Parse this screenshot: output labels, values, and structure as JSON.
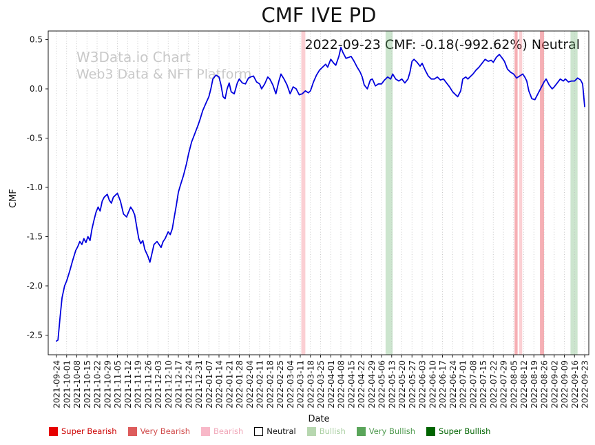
{
  "title": "CMF IVE PD",
  "annotation": "2022-09-23 CMF: -0.18(-992.62%) Neutral",
  "watermark": {
    "line1": "W3Data.io Chart",
    "line2": "Web3 Data & NFT Platform"
  },
  "chart_data": {
    "type": "line",
    "title": "CMF IVE PD",
    "xlabel": "Date",
    "ylabel": "CMF",
    "ylim": [
      -2.7,
      0.59
    ],
    "yticks": [
      0.5,
      0.0,
      -0.5,
      -1.0,
      -1.5,
      -2.0,
      -2.5
    ],
    "grid": "vertical-dotted",
    "legend_position": "bottom",
    "line_color": "#0000dd",
    "x_tick_labels": [
      "2021-09-24",
      "2021-10-01",
      "2021-10-08",
      "2021-10-15",
      "2021-10-22",
      "2021-10-29",
      "2021-11-05",
      "2021-11-12",
      "2021-11-19",
      "2021-11-26",
      "2021-12-03",
      "2021-12-10",
      "2021-12-17",
      "2021-12-24",
      "2021-12-31",
      "2022-01-07",
      "2022-01-14",
      "2022-01-21",
      "2022-01-28",
      "2022-02-04",
      "2022-02-11",
      "2022-02-18",
      "2022-02-25",
      "2022-03-04",
      "2022-03-11",
      "2022-03-18",
      "2022-03-25",
      "2022-04-01",
      "2022-04-08",
      "2022-04-15",
      "2022-04-22",
      "2022-04-29",
      "2022-05-06",
      "2022-05-13",
      "2022-05-20",
      "2022-05-27",
      "2022-06-03",
      "2022-06-10",
      "2022-06-17",
      "2022-06-24",
      "2022-07-01",
      "2022-07-08",
      "2022-07-15",
      "2022-07-22",
      "2022-07-29",
      "2022-08-05",
      "2022-08-12",
      "2022-08-19",
      "2022-08-26",
      "2022-09-02",
      "2022-09-09",
      "2022-09-16",
      "2022-09-23"
    ],
    "band_colors": {
      "bearish": "rgba(244,130,140,0.38)",
      "very_bearish": "rgba(238,95,105,0.5)",
      "bullish": "rgba(110,180,115,0.35)"
    },
    "bands": [
      {
        "from": 24.1,
        "to": 24.5,
        "type": "bearish",
        "near_date": "2022-03-18"
      },
      {
        "from": 32.4,
        "to": 33.1,
        "type": "bullish",
        "near_date": "2022-05-13"
      },
      {
        "from": 45.1,
        "to": 45.4,
        "type": "very_bearish",
        "near_date": "2022-08-05"
      },
      {
        "from": 45.55,
        "to": 45.85,
        "type": "bearish",
        "near_date": "2022-08-12"
      },
      {
        "from": 47.6,
        "to": 48.0,
        "type": "very_bearish",
        "near_date": "2022-08-26"
      },
      {
        "from": 50.6,
        "to": 51.3,
        "type": "bullish",
        "near_date": "2022-09-16"
      }
    ],
    "series": [
      {
        "name": "CMF",
        "color": "#0000dd",
        "x_unit": "week_index_of_x_tick_labels",
        "points": [
          [
            0,
            -2.56
          ],
          [
            0.15,
            -2.55
          ],
          [
            0.35,
            -2.32
          ],
          [
            0.55,
            -2.12
          ],
          [
            0.8,
            -2.0
          ],
          [
            1,
            -1.95
          ],
          [
            1.3,
            -1.85
          ],
          [
            1.6,
            -1.74
          ],
          [
            1.9,
            -1.64
          ],
          [
            2.1,
            -1.6
          ],
          [
            2.3,
            -1.55
          ],
          [
            2.5,
            -1.58
          ],
          [
            2.7,
            -1.52
          ],
          [
            2.9,
            -1.56
          ],
          [
            3.1,
            -1.5
          ],
          [
            3.3,
            -1.54
          ],
          [
            3.5,
            -1.42
          ],
          [
            3.7,
            -1.33
          ],
          [
            3.9,
            -1.25
          ],
          [
            4.1,
            -1.2
          ],
          [
            4.3,
            -1.24
          ],
          [
            4.5,
            -1.14
          ],
          [
            4.7,
            -1.1
          ],
          [
            5,
            -1.07
          ],
          [
            5.2,
            -1.13
          ],
          [
            5.4,
            -1.16
          ],
          [
            5.6,
            -1.1
          ],
          [
            5.8,
            -1.08
          ],
          [
            6,
            -1.06
          ],
          [
            6.3,
            -1.14
          ],
          [
            6.6,
            -1.27
          ],
          [
            6.9,
            -1.3
          ],
          [
            7.1,
            -1.25
          ],
          [
            7.3,
            -1.2
          ],
          [
            7.5,
            -1.23
          ],
          [
            7.7,
            -1.28
          ],
          [
            7.9,
            -1.4
          ],
          [
            8.1,
            -1.52
          ],
          [
            8.3,
            -1.57
          ],
          [
            8.5,
            -1.54
          ],
          [
            8.7,
            -1.63
          ],
          [
            9,
            -1.7
          ],
          [
            9.2,
            -1.76
          ],
          [
            9.4,
            -1.67
          ],
          [
            9.6,
            -1.58
          ],
          [
            9.9,
            -1.55
          ],
          [
            10.1,
            -1.58
          ],
          [
            10.3,
            -1.61
          ],
          [
            10.5,
            -1.55
          ],
          [
            10.7,
            -1.52
          ],
          [
            11,
            -1.45
          ],
          [
            11.2,
            -1.48
          ],
          [
            11.4,
            -1.42
          ],
          [
            11.6,
            -1.3
          ],
          [
            11.8,
            -1.18
          ],
          [
            12,
            -1.05
          ],
          [
            12.2,
            -0.98
          ],
          [
            12.5,
            -0.88
          ],
          [
            12.8,
            -0.76
          ],
          [
            13,
            -0.66
          ],
          [
            13.3,
            -0.54
          ],
          [
            13.6,
            -0.46
          ],
          [
            13.9,
            -0.38
          ],
          [
            14.1,
            -0.32
          ],
          [
            14.4,
            -0.22
          ],
          [
            14.7,
            -0.15
          ],
          [
            15,
            -0.08
          ],
          [
            15.2,
            0
          ],
          [
            15.4,
            0.1
          ],
          [
            15.7,
            0.14
          ],
          [
            16,
            0.12
          ],
          [
            16.2,
            0.04
          ],
          [
            16.4,
            -0.08
          ],
          [
            16.6,
            -0.1
          ],
          [
            16.8,
            0
          ],
          [
            17,
            0.06
          ],
          [
            17.2,
            -0.03
          ],
          [
            17.5,
            -0.05
          ],
          [
            17.8,
            0.06
          ],
          [
            18,
            0.1
          ],
          [
            18.3,
            0.06
          ],
          [
            18.6,
            0.05
          ],
          [
            18.9,
            0.11
          ],
          [
            19.1,
            0.12
          ],
          [
            19.4,
            0.13
          ],
          [
            19.7,
            0.07
          ],
          [
            20,
            0.05
          ],
          [
            20.2,
            0
          ],
          [
            20.5,
            0.05
          ],
          [
            20.8,
            0.12
          ],
          [
            21,
            0.1
          ],
          [
            21.3,
            0.04
          ],
          [
            21.6,
            -0.05
          ],
          [
            21.9,
            0.08
          ],
          [
            22.1,
            0.15
          ],
          [
            22.4,
            0.1
          ],
          [
            22.7,
            0.04
          ],
          [
            23,
            -0.05
          ],
          [
            23.3,
            0.02
          ],
          [
            23.6,
            0
          ],
          [
            23.9,
            -0.06
          ],
          [
            24.2,
            -0.05
          ],
          [
            24.5,
            -0.02
          ],
          [
            24.8,
            -0.04
          ],
          [
            25,
            -0.02
          ],
          [
            25.3,
            0.07
          ],
          [
            25.6,
            0.14
          ],
          [
            25.9,
            0.19
          ],
          [
            26.2,
            0.22
          ],
          [
            26.5,
            0.25
          ],
          [
            26.7,
            0.22
          ],
          [
            27,
            0.3
          ],
          [
            27.3,
            0.26
          ],
          [
            27.5,
            0.24
          ],
          [
            27.8,
            0.33
          ],
          [
            28,
            0.42
          ],
          [
            28.2,
            0.37
          ],
          [
            28.5,
            0.31
          ],
          [
            28.8,
            0.32
          ],
          [
            29,
            0.33
          ],
          [
            29.3,
            0.28
          ],
          [
            29.6,
            0.22
          ],
          [
            29.9,
            0.17
          ],
          [
            30.1,
            0.12
          ],
          [
            30.3,
            0.04
          ],
          [
            30.6,
            0
          ],
          [
            30.9,
            0.09
          ],
          [
            31.1,
            0.1
          ],
          [
            31.4,
            0.03
          ],
          [
            31.7,
            0.05
          ],
          [
            32,
            0.05
          ],
          [
            32.3,
            0.09
          ],
          [
            32.6,
            0.12
          ],
          [
            32.9,
            0.1
          ],
          [
            33.1,
            0.15
          ],
          [
            33.4,
            0.1
          ],
          [
            33.7,
            0.08
          ],
          [
            34,
            0.1
          ],
          [
            34.3,
            0.06
          ],
          [
            34.6,
            0.1
          ],
          [
            34.8,
            0.17
          ],
          [
            35,
            0.28
          ],
          [
            35.2,
            0.3
          ],
          [
            35.5,
            0.27
          ],
          [
            35.8,
            0.23
          ],
          [
            36,
            0.26
          ],
          [
            36.3,
            0.19
          ],
          [
            36.6,
            0.13
          ],
          [
            36.9,
            0.1
          ],
          [
            37.2,
            0.1
          ],
          [
            37.5,
            0.12
          ],
          [
            37.8,
            0.09
          ],
          [
            38.1,
            0.1
          ],
          [
            38.4,
            0.06
          ],
          [
            38.7,
            0.02
          ],
          [
            39,
            -0.03
          ],
          [
            39.3,
            -0.06
          ],
          [
            39.5,
            -0.08
          ],
          [
            39.8,
            -0.02
          ],
          [
            40,
            0.1
          ],
          [
            40.3,
            0.12
          ],
          [
            40.5,
            0.1
          ],
          [
            40.8,
            0.13
          ],
          [
            41,
            0.15
          ],
          [
            41.3,
            0.19
          ],
          [
            41.6,
            0.22
          ],
          [
            41.9,
            0.26
          ],
          [
            42.2,
            0.3
          ],
          [
            42.5,
            0.28
          ],
          [
            42.8,
            0.29
          ],
          [
            43,
            0.27
          ],
          [
            43.3,
            0.32
          ],
          [
            43.6,
            0.35
          ],
          [
            43.9,
            0.31
          ],
          [
            44.1,
            0.28
          ],
          [
            44.4,
            0.2
          ],
          [
            44.7,
            0.17
          ],
          [
            45,
            0.15
          ],
          [
            45.3,
            0.11
          ],
          [
            45.6,
            0.13
          ],
          [
            45.9,
            0.15
          ],
          [
            46.1,
            0.12
          ],
          [
            46.3,
            0.08
          ],
          [
            46.5,
            -0.02
          ],
          [
            46.8,
            -0.1
          ],
          [
            47.1,
            -0.11
          ],
          [
            47.4,
            -0.05
          ],
          [
            47.7,
            0.01
          ],
          [
            48,
            0.07
          ],
          [
            48.2,
            0.1
          ],
          [
            48.5,
            0.04
          ],
          [
            48.8,
            0
          ],
          [
            49,
            0.02
          ],
          [
            49.3,
            0.06
          ],
          [
            49.6,
            0.1
          ],
          [
            49.9,
            0.08
          ],
          [
            50.1,
            0.1
          ],
          [
            50.4,
            0.07
          ],
          [
            50.7,
            0.08
          ],
          [
            51,
            0.08
          ],
          [
            51.3,
            0.11
          ],
          [
            51.6,
            0.09
          ],
          [
            51.8,
            0.05
          ],
          [
            52,
            -0.18
          ]
        ]
      }
    ]
  },
  "legend": {
    "items": [
      {
        "label": "Super Bearish",
        "swatch": "#e60000",
        "edge": "#e60000",
        "text_color": "#cc0000"
      },
      {
        "label": "Very Bearish",
        "swatch": "#dd5c5c",
        "edge": "#dd5c5c",
        "text_color": "#d04a4a"
      },
      {
        "label": "Bearish",
        "swatch": "#f8b8c8",
        "edge": "#f8b8c8",
        "text_color": "#f0a6b8"
      },
      {
        "label": "Neutral",
        "swatch": "#ffffff",
        "edge": "#000000",
        "text_color": "#111111"
      },
      {
        "label": "Bullish",
        "swatch": "#b7d7b0",
        "edge": "#b7d7b0",
        "text_color": "#a9cfa1"
      },
      {
        "label": "Very Bullish",
        "swatch": "#5aa55a",
        "edge": "#5aa55a",
        "text_color": "#4d994d"
      },
      {
        "label": "Super Bullish",
        "swatch": "#006400",
        "edge": "#006400",
        "text_color": "#006400"
      }
    ]
  }
}
